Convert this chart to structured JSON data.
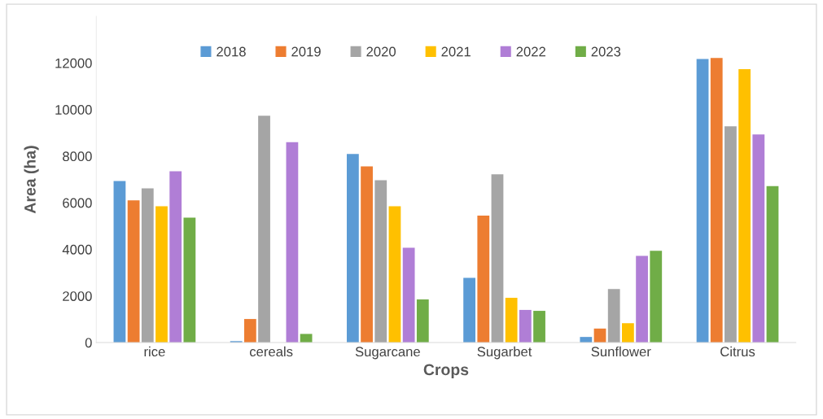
{
  "chart_data": {
    "type": "bar",
    "xlabel": "Crops",
    "ylabel": "Area (ha)",
    "categories": [
      "rice",
      "cereals",
      "Sugarcane",
      "Sugarbet",
      "Sunflower",
      "Citrus"
    ],
    "series": [
      {
        "name": "2018",
        "color": "#5b9bd5",
        "values": [
          6930,
          60,
          8090,
          2780,
          240,
          12170
        ]
      },
      {
        "name": "2019",
        "color": "#ed7d31",
        "values": [
          6100,
          1010,
          7560,
          5450,
          600,
          12210
        ]
      },
      {
        "name": "2020",
        "color": "#a5a5a5",
        "values": [
          6620,
          9730,
          6970,
          7220,
          2300,
          9280
        ]
      },
      {
        "name": "2021",
        "color": "#ffc000",
        "values": [
          5850,
          0,
          5850,
          1920,
          830,
          11730
        ]
      },
      {
        "name": "2022",
        "color": "#b07ed6",
        "values": [
          7350,
          8600,
          4070,
          1400,
          3720,
          8930
        ]
      },
      {
        "name": "2023",
        "color": "#70ad47",
        "values": [
          5360,
          370,
          1850,
          1360,
          3940,
          6710
        ]
      }
    ],
    "ylim": [
      0,
      14000
    ],
    "yticks": [
      0,
      2000,
      4000,
      6000,
      8000,
      10000,
      12000
    ],
    "legend": "top",
    "grid": false
  }
}
